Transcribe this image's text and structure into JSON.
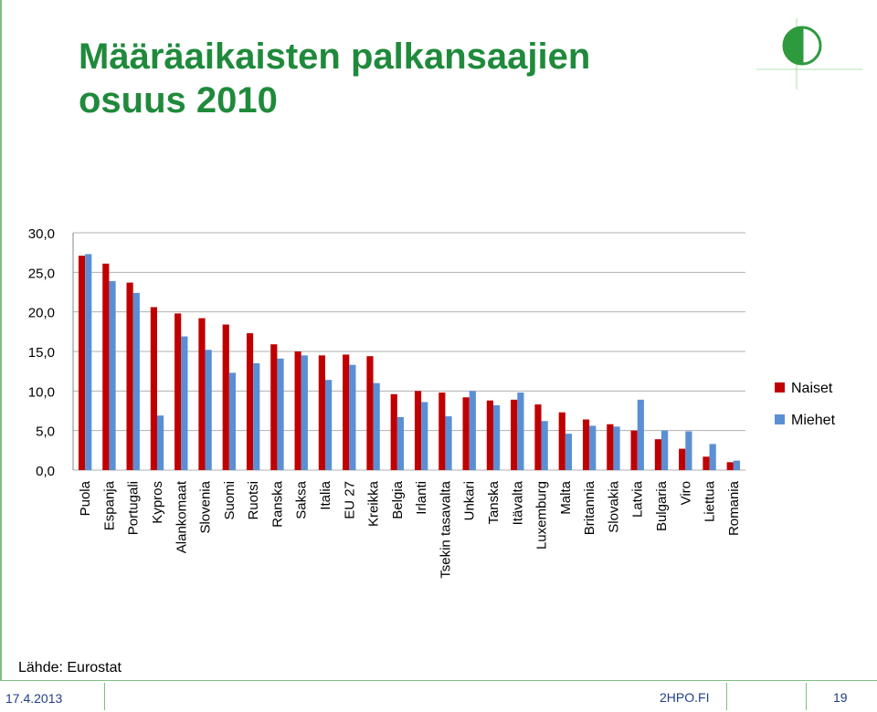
{
  "slide": {
    "title_line1": "Määräaikaisten palkansaajien",
    "title_line2": "osuus 2010",
    "source": "Lähde: Eurostat",
    "footer_date": "17.4.2013",
    "footer_site": "2HPO.FI",
    "footer_page": "19"
  },
  "colors": {
    "naiset": "#c00000",
    "miehet": "#5b8fd4",
    "title": "#1f8a3b",
    "grid": "#b0b0b0"
  },
  "chart_data": {
    "type": "bar",
    "title": "",
    "xlabel": "",
    "ylabel": "",
    "ylim": [
      0,
      30
    ],
    "yticks": [
      "0,0",
      "5,0",
      "10,0",
      "15,0",
      "20,0",
      "25,0",
      "30,0"
    ],
    "grid": true,
    "legend_position": "right",
    "categories": [
      "Puola",
      "Espanja",
      "Portugali",
      "Kypros",
      "Alankomaat",
      "Slovenia",
      "Suomi",
      "Ruotsi",
      "Ranska",
      "Saksa",
      "Italia",
      "EU 27",
      "Kreikka",
      "Belgia",
      "Irlanti",
      "Tsekin tasavalta",
      "Unkari",
      "Tanska",
      "Itävalta",
      "Luxemburg",
      "Malta",
      "Britannia",
      "Slovakia",
      "Latvia",
      "Bulgaria",
      "Viro",
      "Liettua",
      "Romania"
    ],
    "series": [
      {
        "name": "Naiset",
        "values": [
          27.1,
          26.1,
          23.7,
          20.6,
          19.8,
          19.2,
          18.4,
          17.3,
          15.9,
          15.0,
          14.5,
          14.6,
          14.4,
          9.6,
          10.0,
          9.8,
          9.2,
          8.8,
          8.9,
          8.3,
          7.3,
          6.4,
          5.8,
          5.0,
          3.9,
          2.7,
          1.7,
          1.0
        ]
      },
      {
        "name": "Miehet",
        "values": [
          27.3,
          23.9,
          22.4,
          6.9,
          16.9,
          15.2,
          12.3,
          13.5,
          14.1,
          14.5,
          11.4,
          13.3,
          11.0,
          6.7,
          8.6,
          6.8,
          10.0,
          8.2,
          9.8,
          6.2,
          4.6,
          5.6,
          5.5,
          8.9,
          5.0,
          4.9,
          3.3,
          1.2
        ]
      }
    ]
  }
}
